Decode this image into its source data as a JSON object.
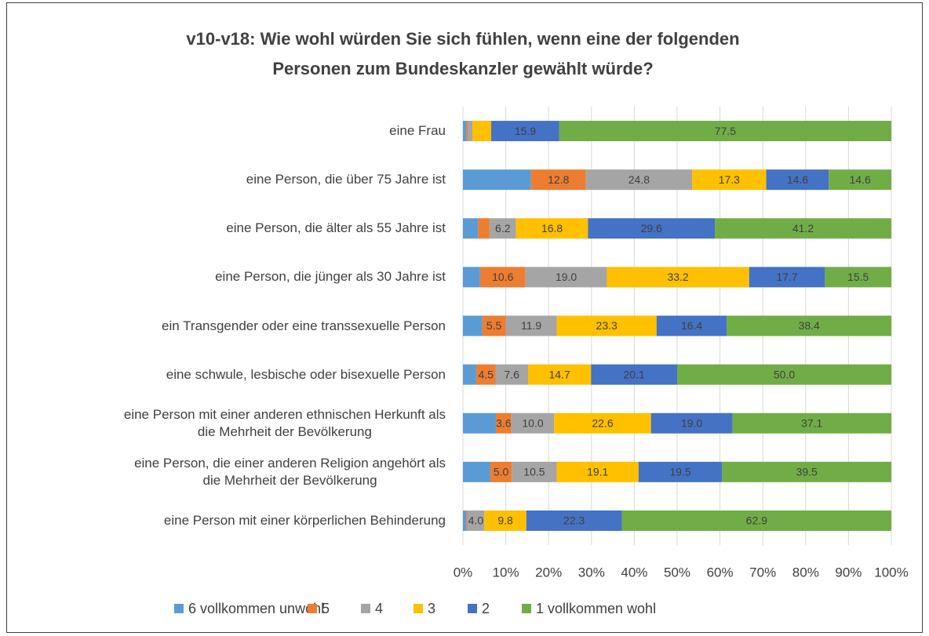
{
  "chart_data": {
    "type": "stacked_bar_horizontal",
    "title": [
      "v10-v18: Wie wohl würden Sie sich fühlen, wenn eine der folgenden",
      "Personen zum Bundeskanzler gewählt würde?"
    ],
    "categories": [
      "eine Frau",
      "eine Person, die über 75 Jahre ist",
      "eine Person, die älter als 55 Jahre ist",
      "eine Person, die jünger als 30 Jahre ist",
      "ein Transgender oder eine transsexuelle Person",
      "eine schwule, lesbische oder bisexuelle Person",
      "eine Person mit einer anderen ethnischen Herkunft als\ndie Mehrheit der Bevölkerung",
      "eine Person, die einer anderen Religion angehört als\ndie Mehrheit der Bevölkerung",
      "eine Person mit einer körperlichen Behinderung"
    ],
    "series": [
      {
        "name": "6 vollkommen unwohl",
        "color": "#5b9bd5",
        "values": [
          0.8,
          15.9,
          3.5,
          4.0,
          4.5,
          3.1,
          7.7,
          6.4,
          0.8
        ],
        "value_labels": [
          null,
          null,
          null,
          null,
          null,
          null,
          null,
          null,
          null
        ]
      },
      {
        "name": "5",
        "color": "#ed7d31",
        "values": [
          0.3,
          12.8,
          2.7,
          10.6,
          5.5,
          4.5,
          3.6,
          5.0,
          0.2
        ],
        "value_labels": [
          null,
          "12.8",
          null,
          "10.6",
          "5.5",
          "4.5",
          "3.6",
          "5.0",
          null
        ]
      },
      {
        "name": "4",
        "color": "#a5a5a5",
        "values": [
          1.1,
          24.8,
          6.2,
          19.0,
          11.9,
          7.6,
          10.0,
          10.5,
          4.0
        ],
        "value_labels": [
          null,
          "24.8",
          "6.2",
          "19.0",
          "11.9",
          "7.6",
          "10.0",
          "10.5",
          "4.0"
        ]
      },
      {
        "name": "3",
        "color": "#ffc000",
        "values": [
          4.4,
          17.3,
          16.8,
          33.2,
          23.3,
          14.7,
          22.6,
          19.1,
          9.8
        ],
        "value_labels": [
          null,
          "17.3",
          "16.8",
          "33.2",
          "23.3",
          "14.7",
          "22.6",
          "19.1",
          "9.8"
        ]
      },
      {
        "name": "2",
        "color": "#4472c4",
        "values": [
          15.9,
          14.6,
          29.6,
          17.7,
          16.4,
          20.1,
          19.0,
          19.5,
          22.3
        ],
        "value_labels": [
          "15.9",
          "14.6",
          "29.6",
          "17.7",
          "16.4",
          "20.1",
          "19.0",
          "19.5",
          "22.3"
        ]
      },
      {
        "name": "1 vollkommen wohl",
        "color": "#70ad47",
        "values": [
          77.5,
          14.6,
          41.2,
          15.5,
          38.4,
          50.0,
          37.1,
          39.5,
          62.9
        ],
        "value_labels": [
          "77.5",
          "14.6",
          "41.2",
          "15.5",
          "38.4",
          "50.0",
          "37.1",
          "39.5",
          "62.9"
        ]
      }
    ],
    "xlim": [
      0,
      100
    ],
    "xticks": [
      {
        "value": 0,
        "label": "0%"
      },
      {
        "value": 10,
        "label": "10%"
      },
      {
        "value": 20,
        "label": "20%"
      },
      {
        "value": 30,
        "label": "30%"
      },
      {
        "value": 40,
        "label": "40%"
      },
      {
        "value": 50,
        "label": "50%"
      },
      {
        "value": 60,
        "label": "60%"
      },
      {
        "value": 70,
        "label": "70%"
      },
      {
        "value": 80,
        "label": "80%"
      },
      {
        "value": 90,
        "label": "90%"
      },
      {
        "value": 100,
        "label": "100%"
      }
    ],
    "grid": true,
    "legend": "bottom"
  }
}
